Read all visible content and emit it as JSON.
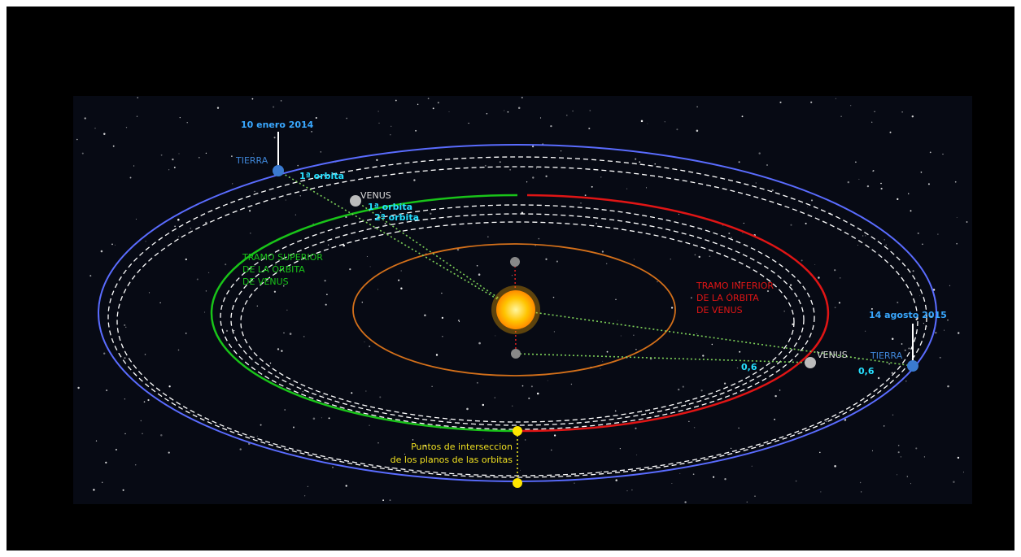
{
  "labels": {
    "date_start": "10 enero 2014",
    "earth_left": "TIERRA",
    "earth_left_orbit": "1ª orbita",
    "venus_top": "VENUS",
    "venus_orbit_1": "1ª orbita",
    "venus_orbit_2": "2ª orbita",
    "upper_section": [
      "TRAMO SUPERIOR",
      "DE LA ÓRBITA",
      "DE VENUS"
    ],
    "lower_section": [
      "TRAMO INFERIOR",
      "DE LA ÓRBITA",
      "DE VENUS"
    ],
    "date_end": "14 agosto 2015",
    "venus_right": "VENUS",
    "earth_right": "TIERRA",
    "distance_venus": "0,6",
    "distance_earth": "0,6",
    "intersection": [
      "Puntos de interseccion",
      "de los planos de las orbitas"
    ]
  }
}
